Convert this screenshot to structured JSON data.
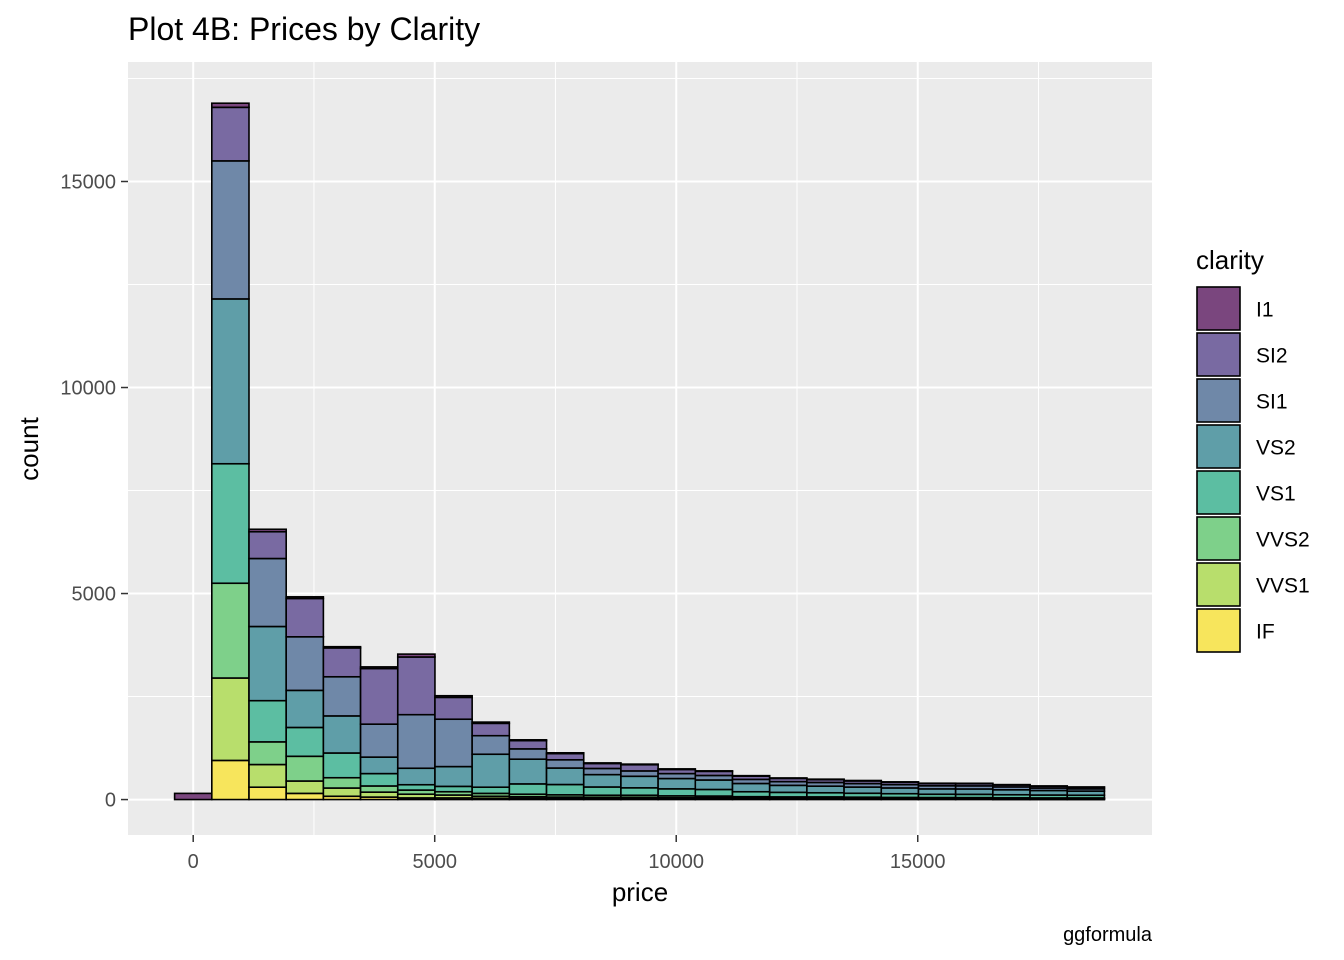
{
  "chart_data": {
    "type": "bar",
    "stacked": true,
    "title": "Plot 4B: Prices by Clarity",
    "xlabel": "price",
    "ylabel": "count",
    "caption": "ggformula",
    "xlim": [
      -1350,
      19850
    ],
    "ylim": [
      -860,
      17900
    ],
    "x_ticks": [
      0,
      5000,
      10000,
      15000
    ],
    "y_ticks": [
      0,
      5000,
      10000,
      15000
    ],
    "bin_width": 770,
    "bin_centers": [
      0,
      770,
      1540,
      2310,
      3080,
      3850,
      4620,
      5390,
      6160,
      6930,
      7700,
      8470,
      9240,
      10010,
      10780,
      11550,
      12320,
      13090,
      13860,
      14630,
      15400,
      16170,
      16940,
      17710,
      18480
    ],
    "legend_title": "clarity",
    "legend_position": "right",
    "grid": true,
    "series": [
      {
        "name": "IF",
        "color": "#F7E55C",
        "values": [
          0,
          950,
          300,
          150,
          80,
          60,
          40,
          40,
          30,
          30,
          25,
          25,
          25,
          20,
          20,
          15,
          15,
          15,
          15,
          12,
          12,
          12,
          10,
          10,
          10
        ]
      },
      {
        "name": "VVS1",
        "color": "#B8DE6C",
        "values": [
          0,
          2000,
          550,
          300,
          200,
          120,
          90,
          70,
          50,
          40,
          35,
          30,
          30,
          25,
          25,
          20,
          20,
          20,
          18,
          15,
          15,
          15,
          12,
          12,
          12
        ]
      },
      {
        "name": "VVS2",
        "color": "#7ED08A",
        "values": [
          0,
          2300,
          550,
          600,
          250,
          150,
          100,
          80,
          70,
          60,
          55,
          50,
          50,
          45,
          40,
          35,
          30,
          30,
          25,
          25,
          22,
          20,
          20,
          18,
          18
        ]
      },
      {
        "name": "VS1",
        "color": "#5CBEA2",
        "values": [
          0,
          2900,
          1000,
          700,
          600,
          300,
          130,
          130,
          150,
          250,
          250,
          200,
          180,
          170,
          160,
          120,
          110,
          100,
          95,
          90,
          80,
          80,
          75,
          70,
          65
        ]
      },
      {
        "name": "VS2",
        "color": "#5F9EA8",
        "values": [
          0,
          4000,
          1800,
          900,
          900,
          400,
          400,
          480,
          800,
          600,
          400,
          300,
          280,
          250,
          230,
          200,
          170,
          160,
          150,
          140,
          130,
          130,
          120,
          110,
          100
        ]
      },
      {
        "name": "SI1",
        "color": "#6F88A8",
        "values": [
          0,
          3350,
          1650,
          1300,
          950,
          800,
          1300,
          1150,
          450,
          250,
          200,
          150,
          130,
          120,
          110,
          100,
          90,
          90,
          85,
          80,
          75,
          75,
          70,
          60,
          55
        ]
      },
      {
        "name": "SI2",
        "color": "#796AA2",
        "values": [
          0,
          1300,
          650,
          930,
          700,
          1350,
          1400,
          530,
          300,
          200,
          150,
          120,
          150,
          100,
          100,
          80,
          80,
          70,
          65,
          60,
          55,
          55,
          50,
          45,
          40
        ]
      },
      {
        "name": "I1",
        "color": "#7A467E",
        "values": [
          150,
          100,
          60,
          40,
          30,
          40,
          70,
          40,
          30,
          20,
          20,
          15,
          15,
          15,
          12,
          10,
          10,
          10,
          10,
          8,
          8,
          8,
          6,
          6,
          6
        ]
      }
    ]
  }
}
